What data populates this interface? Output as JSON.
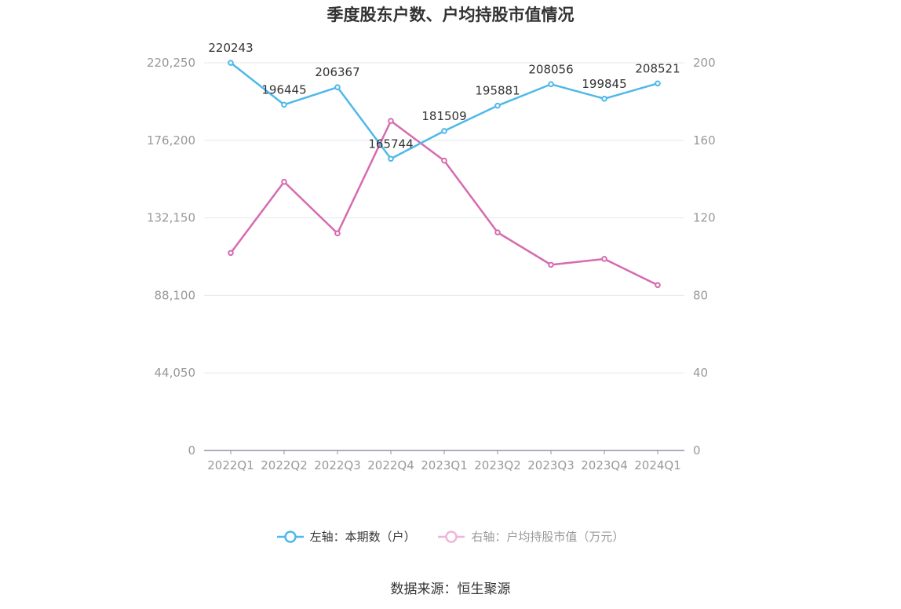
{
  "title": "季度股东户数、户均持股市值情况",
  "source": "数据来源：恒生聚源",
  "colors": {
    "holders": "#4fb8ea",
    "value": "#d66baf",
    "legend_value": "#ecb6d9",
    "grid": "#e4e7ef",
    "axis": "#8f96a3",
    "tick": "#999999",
    "label": "#333333"
  },
  "legend": [
    {
      "label": "左轴：本期数（户）",
      "color": "#4fb8ea"
    },
    {
      "label": "右轴：户均持股市值（万元）",
      "color": "#ecb6d9"
    }
  ],
  "chart_data": {
    "type": "line",
    "categories": [
      "2022Q1",
      "2022Q2",
      "2022Q3",
      "2022Q4",
      "2023Q1",
      "2023Q2",
      "2023Q3",
      "2023Q4",
      "2024Q1"
    ],
    "series": [
      {
        "name": "左轴：本期数（户）",
        "axis": "left",
        "values": [
          220243,
          196445,
          206367,
          165744,
          181509,
          195881,
          208056,
          199845,
          208521
        ],
        "labels": [
          "220243",
          "196445",
          "206367",
          "165744",
          "181509",
          "195881",
          "208056",
          "199845",
          "208521"
        ]
      },
      {
        "name": "右轴：户均持股市值（万元）",
        "axis": "right",
        "values": [
          101.9,
          138.6,
          112,
          170,
          149.5,
          112.5,
          95.8,
          98.8,
          85.3
        ]
      }
    ],
    "left_axis": {
      "ylim": [
        0,
        220250
      ],
      "ticks": [
        0,
        44050,
        88100,
        132150,
        176200,
        220250
      ],
      "tick_labels": [
        "0",
        "44,050",
        "88,100",
        "132,150",
        "176,200",
        "220,250"
      ]
    },
    "right_axis": {
      "ylim": [
        0,
        200
      ],
      "ticks": [
        0,
        40,
        80,
        120,
        160,
        200
      ],
      "tick_labels": [
        "0",
        "40",
        "80",
        "120",
        "160",
        "200"
      ]
    },
    "grid": true,
    "legend_position": "bottom"
  }
}
